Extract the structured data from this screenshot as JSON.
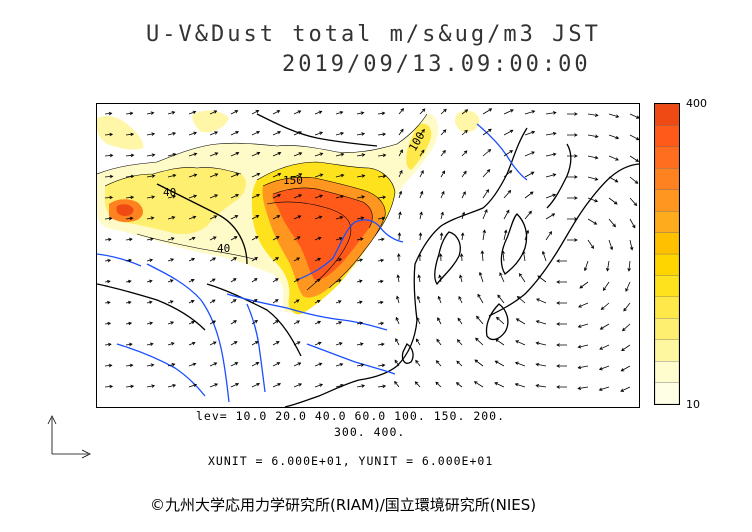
{
  "title": "U-V&Dust total m/s&ug/m3 JST",
  "timestamp": "2019/09/13.09:00:00",
  "colorbar": {
    "max_label": "400",
    "min_label": "10",
    "colors": [
      "#ffffe6",
      "#fffccd",
      "#fff7a0",
      "#ffef70",
      "#ffe84a",
      "#ffe21e",
      "#ffd500",
      "#ffc000",
      "#ffab1e",
      "#ff9620",
      "#ff8221",
      "#ff6e1e",
      "#ff5a1a",
      "#f04a14"
    ]
  },
  "levels_line1": "lev= 10.0 20.0 40.0 60.0 100. 150. 200.",
  "levels_line2": "300. 400.",
  "units_line": "XUNIT = 6.000E+01, YUNIT = 6.000E+01",
  "contour_labels": [
    "40",
    "150",
    "40",
    "100"
  ],
  "copyright": "©九州大学応用力学研究所(RIAM)/国立環境研究所(NIES)",
  "colors": {
    "coast": "#000000",
    "river": "#1a4fff",
    "vector": "#000000"
  }
}
